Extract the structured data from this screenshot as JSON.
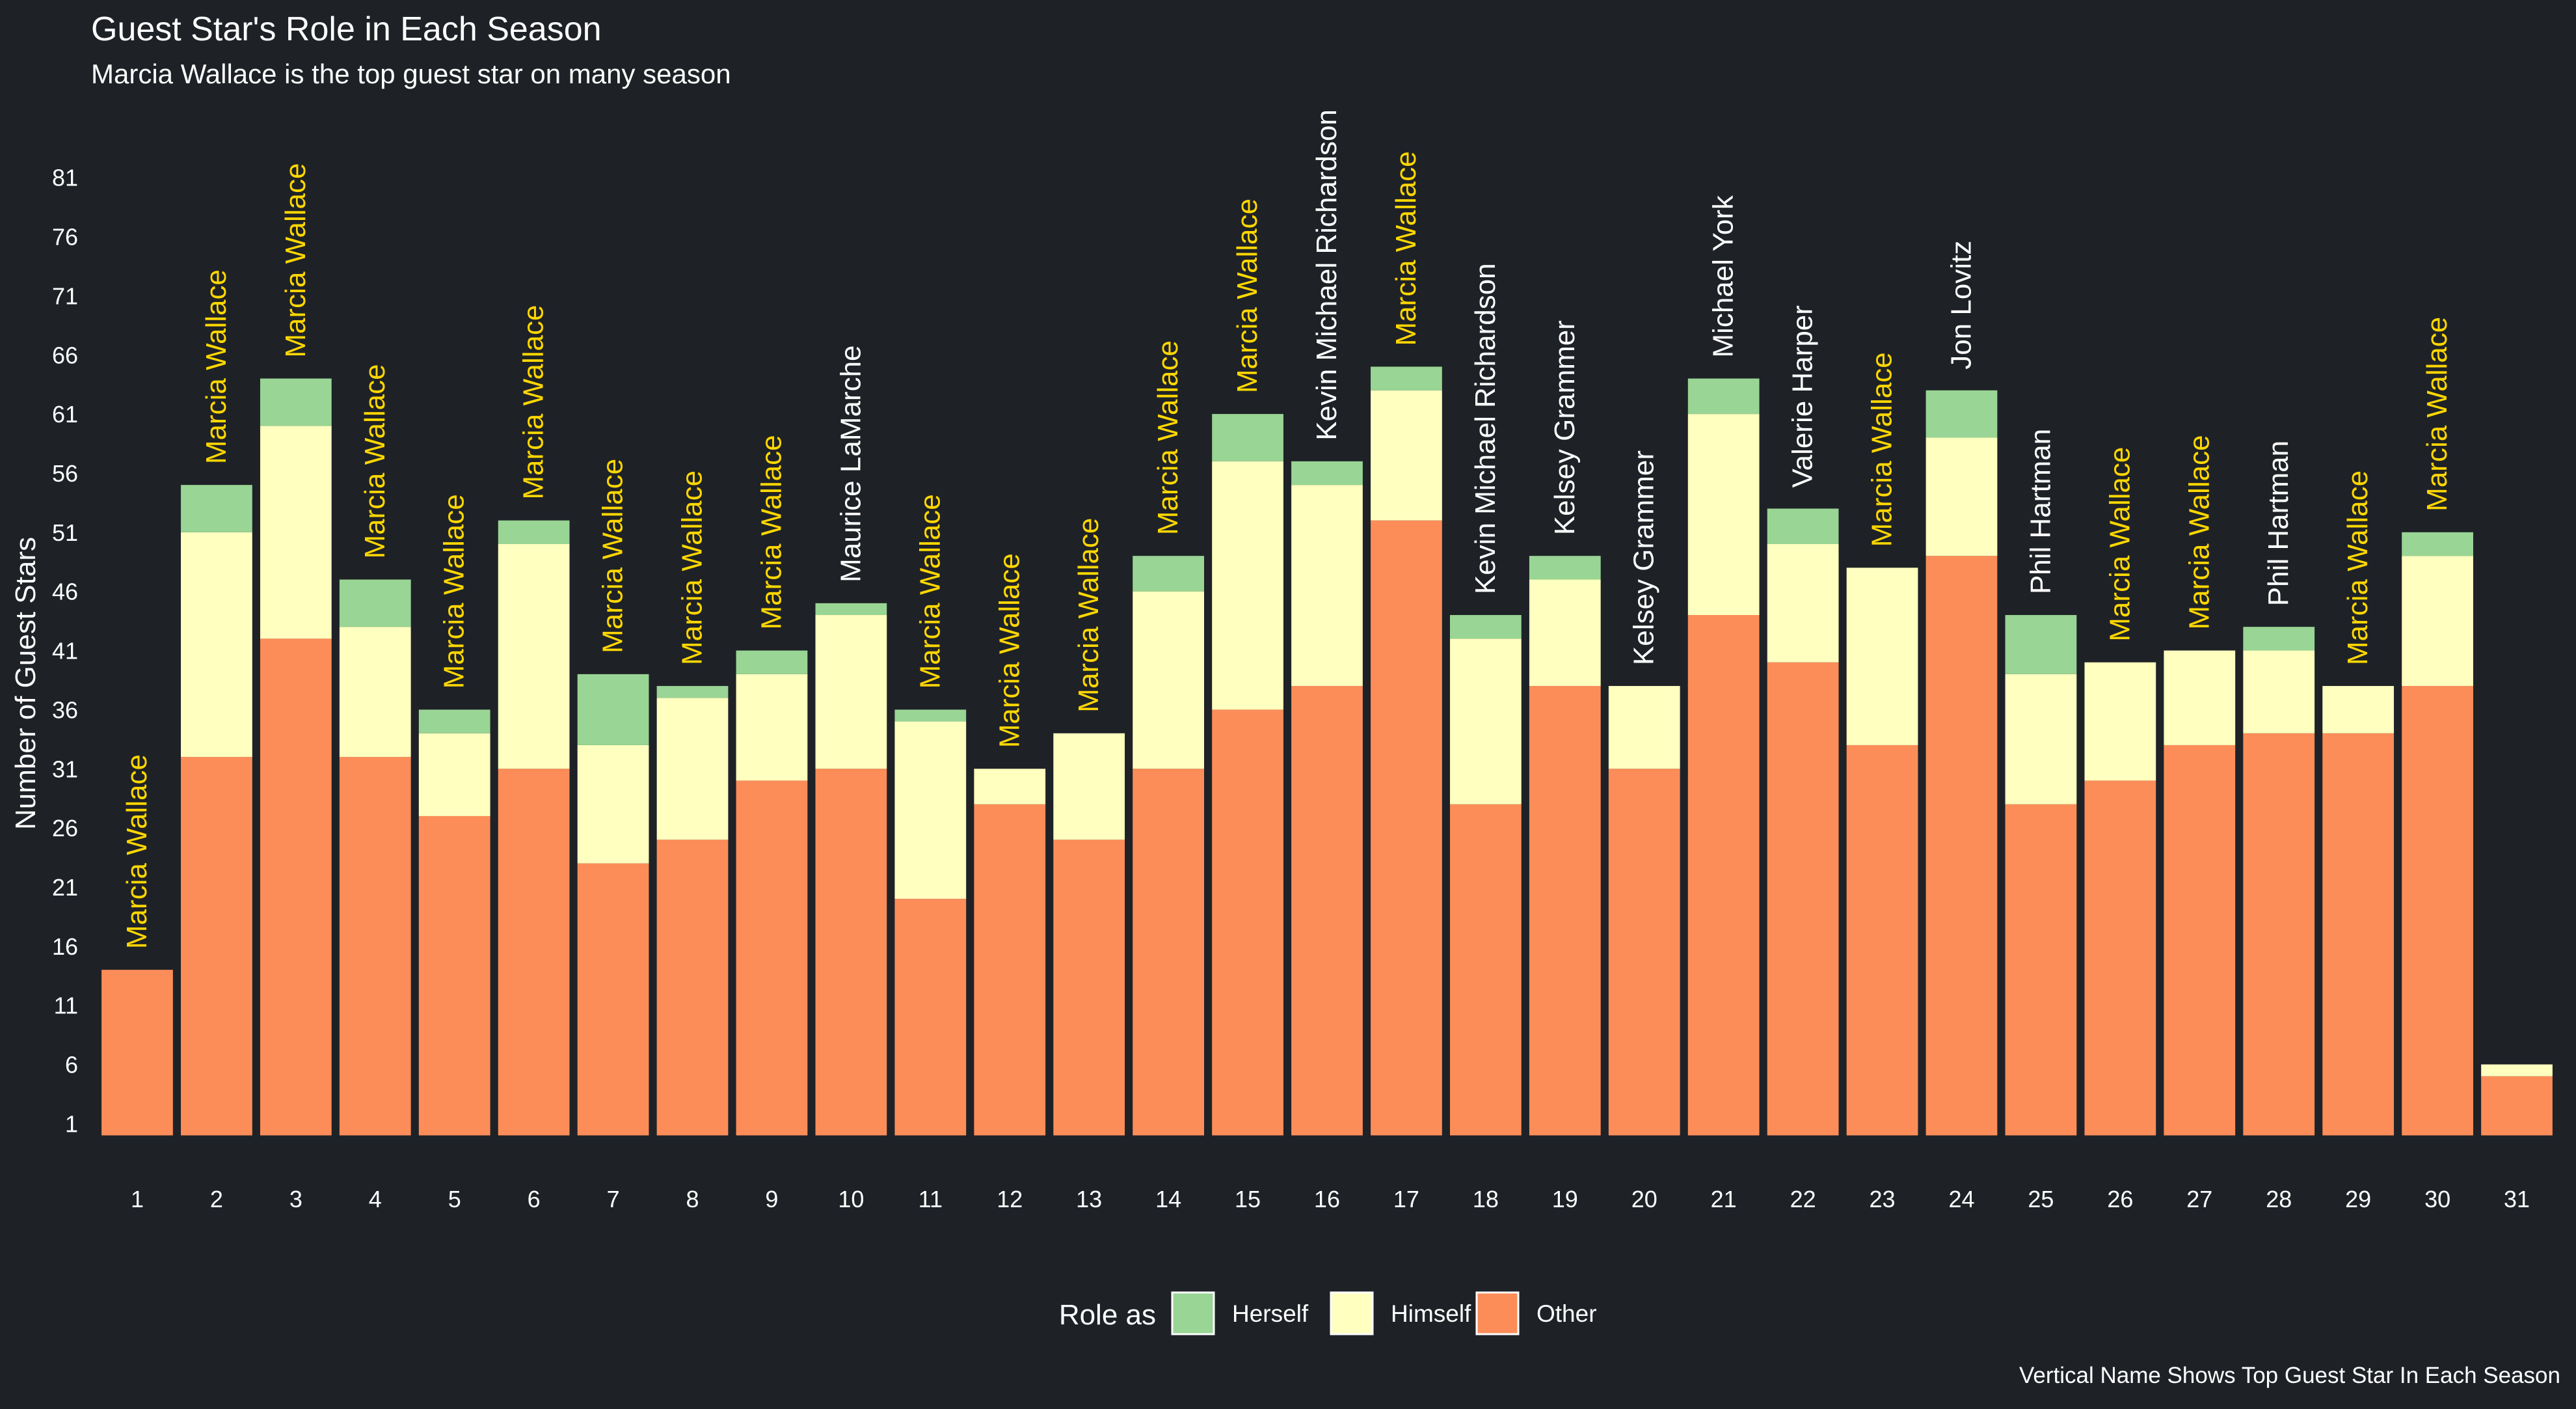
{
  "chart_data": {
    "type": "bar",
    "stacked": true,
    "title": "Guest Star's Role in Each Season",
    "subtitle": "Marcia Wallace is the top guest star on many season",
    "caption": "Vertical Name Shows Top Guest Star In Each Season",
    "ylabel": "Number of Guest Stars",
    "xlabel": "",
    "categories": [
      "1",
      "2",
      "3",
      "4",
      "5",
      "6",
      "7",
      "8",
      "9",
      "10",
      "11",
      "12",
      "13",
      "14",
      "15",
      "16",
      "17",
      "18",
      "19",
      "20",
      "21",
      "22",
      "23",
      "24",
      "25",
      "26",
      "27",
      "28",
      "29",
      "30",
      "31"
    ],
    "y_ticks": [
      "1",
      "6",
      "11",
      "16",
      "21",
      "26",
      "31",
      "36",
      "41",
      "46",
      "51",
      "56",
      "61",
      "66",
      "71",
      "76",
      "81"
    ],
    "ylim": [
      -2.5,
      85
    ],
    "series": [
      {
        "name": "Other",
        "color": "#fc8d59",
        "values": [
          14,
          32,
          42,
          32,
          27,
          31,
          23,
          25,
          30,
          31,
          20,
          28,
          25,
          31,
          36,
          38,
          52,
          28,
          38,
          31,
          44,
          40,
          33,
          49,
          28,
          30,
          33,
          34,
          34,
          38,
          5
        ]
      },
      {
        "name": "Himself",
        "color": "#ffffbf",
        "values": [
          0,
          19,
          18,
          11,
          7,
          19,
          10,
          12,
          9,
          13,
          15,
          3,
          9,
          15,
          21,
          17,
          11,
          14,
          9,
          7,
          17,
          10,
          15,
          10,
          11,
          10,
          8,
          7,
          4,
          11,
          1
        ]
      },
      {
        "name": "Herself",
        "color": "#99d594",
        "values": [
          0,
          4,
          4,
          4,
          2,
          2,
          6,
          1,
          2,
          1,
          1,
          0,
          0,
          3,
          4,
          2,
          2,
          2,
          2,
          0,
          3,
          3,
          0,
          4,
          5,
          0,
          0,
          2,
          0,
          2,
          0
        ]
      }
    ],
    "top_guest_star": [
      "Marcia Wallace",
      "Marcia Wallace",
      "Marcia Wallace",
      "Marcia Wallace",
      "Marcia Wallace",
      "Marcia Wallace",
      "Marcia Wallace",
      "Marcia Wallace",
      "Marcia Wallace",
      "Maurice LaMarche",
      "Marcia Wallace",
      "Marcia Wallace",
      "Marcia Wallace",
      "Marcia Wallace",
      "Marcia Wallace",
      "Kevin Michael Richardson",
      "Marcia Wallace",
      "Kevin Michael Richardson",
      "Kelsey Grammer",
      "Kelsey Grammer",
      "Michael York",
      "Valerie Harper",
      "Marcia Wallace",
      "Jon Lovitz",
      "Phil Hartman",
      "Marcia Wallace",
      "Marcia Wallace",
      "Phil Hartman",
      "Marcia Wallace",
      "Marcia Wallace",
      ""
    ],
    "highlight_name": "Marcia Wallace",
    "highlight_color": "#ffd700",
    "label_color": "#ffffff",
    "legend": {
      "title": "Role as",
      "position": "bottom",
      "items": [
        "Herself",
        "Himself",
        "Other"
      ]
    },
    "grid": false,
    "background": "#1e2227"
  }
}
